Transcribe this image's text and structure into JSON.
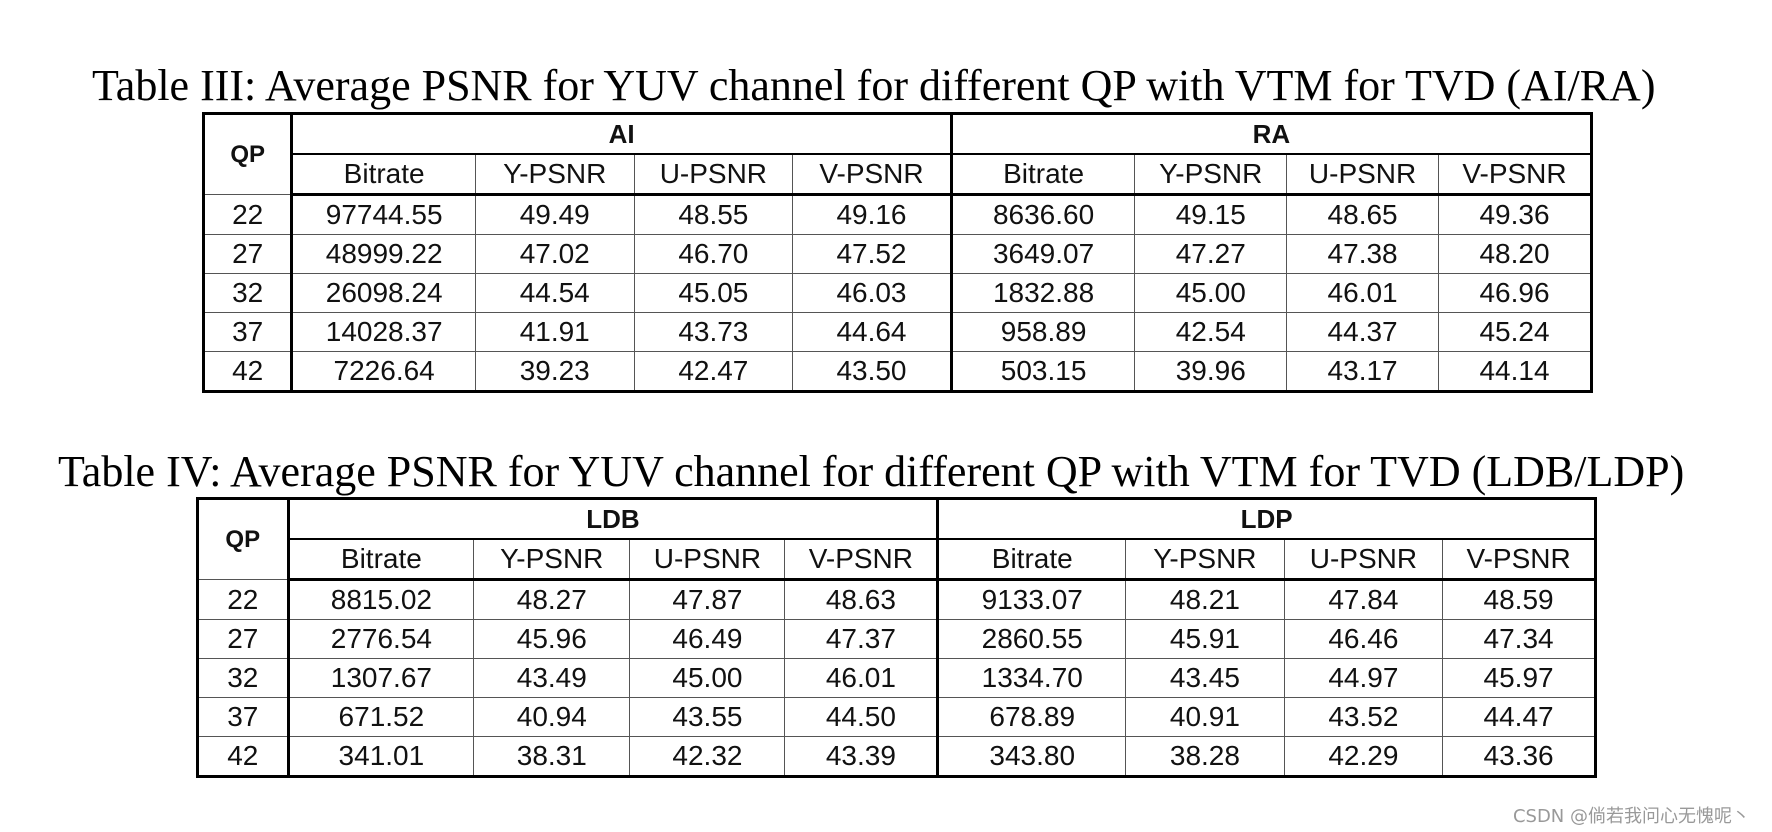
{
  "tables": [
    {
      "caption": "Table III: Average PSNR for YUV channel for different QP with VTM for TVD (AI/RA)",
      "qp_header": "QP",
      "groups": [
        "AI",
        "RA"
      ],
      "columns": [
        "Bitrate",
        "Y-PSNR",
        "U-PSNR",
        "V-PSNR",
        "Bitrate",
        "Y-PSNR",
        "U-PSNR",
        "V-PSNR"
      ],
      "rows": [
        [
          "22",
          "97744.55",
          "49.49",
          "48.55",
          "49.16",
          "8636.60",
          "49.15",
          "48.65",
          "49.36"
        ],
        [
          "27",
          "48999.22",
          "47.02",
          "46.70",
          "47.52",
          "3649.07",
          "47.27",
          "47.38",
          "48.20"
        ],
        [
          "32",
          "26098.24",
          "44.54",
          "45.05",
          "46.03",
          "1832.88",
          "45.00",
          "46.01",
          "46.96"
        ],
        [
          "37",
          "14028.37",
          "41.91",
          "43.73",
          "44.64",
          "958.89",
          "42.54",
          "44.37",
          "45.24"
        ],
        [
          "42",
          "7226.64",
          "39.23",
          "42.47",
          "43.50",
          "503.15",
          "39.96",
          "43.17",
          "44.14"
        ]
      ]
    },
    {
      "caption": "Table IV: Average PSNR for YUV channel for different QP with VTM for TVD (LDB/LDP)",
      "qp_header": "QP",
      "groups": [
        "LDB",
        "LDP"
      ],
      "columns": [
        "Bitrate",
        "Y-PSNR",
        "U-PSNR",
        "V-PSNR",
        "Bitrate",
        "Y-PSNR",
        "U-PSNR",
        "V-PSNR"
      ],
      "rows": [
        [
          "22",
          "8815.02",
          "48.27",
          "47.87",
          "48.63",
          "9133.07",
          "48.21",
          "47.84",
          "48.59"
        ],
        [
          "27",
          "2776.54",
          "45.96",
          "46.49",
          "47.37",
          "2860.55",
          "45.91",
          "46.46",
          "47.34"
        ],
        [
          "32",
          "1307.67",
          "43.49",
          "45.00",
          "46.01",
          "1334.70",
          "43.45",
          "44.97",
          "45.97"
        ],
        [
          "37",
          "671.52",
          "40.94",
          "43.55",
          "44.50",
          "678.89",
          "40.91",
          "43.52",
          "44.47"
        ],
        [
          "42",
          "341.01",
          "38.31",
          "42.32",
          "43.39",
          "343.80",
          "38.28",
          "42.29",
          "43.36"
        ]
      ]
    }
  ],
  "watermark": "CSDN @倘若我问心无愧呢丶"
}
